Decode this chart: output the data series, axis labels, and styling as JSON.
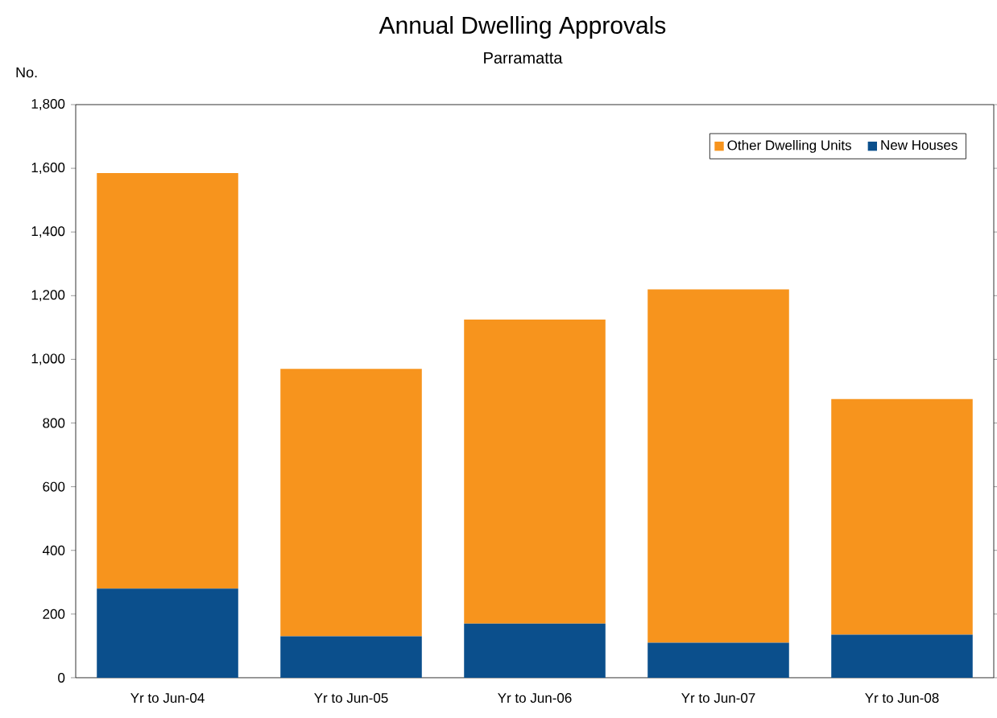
{
  "chart_data": {
    "type": "bar",
    "title": "Annual Dwelling Approvals",
    "subtitle": "Parramatta",
    "ylabel": "No.",
    "categories": [
      "Yr to Jun-04",
      "Yr to Jun-05",
      "Yr to Jun-06",
      "Yr to Jun-07",
      "Yr to Jun-08"
    ],
    "stacked": true,
    "series": [
      {
        "name": "New Houses",
        "color": "#0b4f8c",
        "values": [
          280,
          130,
          170,
          110,
          135
        ]
      },
      {
        "name": "Other Dwelling Units",
        "color": "#f7941d",
        "values": [
          1305,
          840,
          955,
          1110,
          740
        ]
      }
    ],
    "ylim": [
      0,
      1800
    ],
    "yticks": [
      0,
      200,
      400,
      600,
      800,
      {
        "value": 1000,
        "label": "1,000"
      },
      {
        "value": 1200,
        "label": "1,200"
      },
      {
        "value": 1400,
        "label": "1,400"
      },
      {
        "value": 1600,
        "label": "1,600"
      },
      {
        "value": 1800,
        "label": "1,800"
      }
    ],
    "grid": false,
    "legend": "top right"
  }
}
